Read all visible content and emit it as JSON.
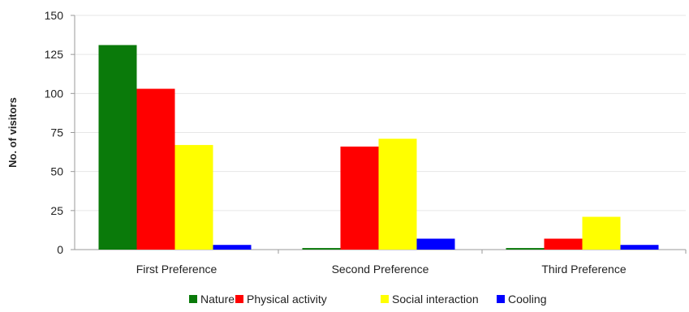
{
  "chart_data": {
    "type": "bar",
    "title": "",
    "xlabel": "",
    "ylabel": "No. of visitors",
    "ylim": [
      0,
      150
    ],
    "yticks": [
      0,
      25,
      50,
      75,
      100,
      125,
      150
    ],
    "categories": [
      "First Preference",
      "Second Preference",
      "Third Preference"
    ],
    "series": [
      {
        "name": "Nature",
        "color": "#0a7a0a",
        "values": [
          131,
          1,
          1
        ]
      },
      {
        "name": "Physical activity",
        "color": "#ff0000",
        "values": [
          103,
          66,
          7
        ]
      },
      {
        "name": "Social interaction",
        "color": "#ffff00",
        "values": [
          67,
          71,
          21
        ]
      },
      {
        "name": "Cooling",
        "color": "#0000ff",
        "values": [
          3,
          7,
          3
        ]
      }
    ],
    "grid": true,
    "legend_position": "bottom"
  }
}
